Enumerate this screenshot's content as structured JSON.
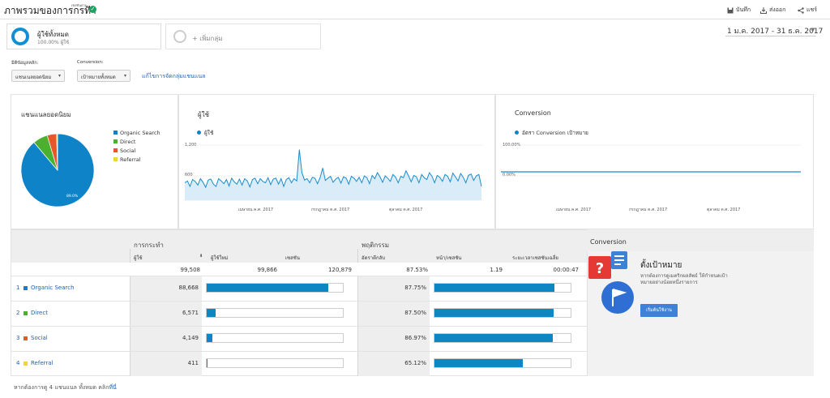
{
  "header": {
    "title": "ภาพรวมของการกรทีา",
    "title_tag": "เซสชันตาม",
    "actions": [
      {
        "label": "บันทึก",
        "icon": "save-icon"
      },
      {
        "label": "ส่งออก",
        "icon": "export-icon"
      },
      {
        "label": "แชร์",
        "icon": "share-icon"
      }
    ]
  },
  "segments": {
    "active_name": "ผู้ใช้ทั้งหมด",
    "active_sub": "100.00% ผู้ใช้",
    "add_label": "+ เพิ่มกลุ่ม"
  },
  "date_range": "1 ม.ค. 2017 - 31 ธ.ค. 2017",
  "controls": {
    "primary_dim_label": "มิติข้อมูลหลัก:",
    "primary_dim_value": "แชนเนลยอดนิยม",
    "conversion_label": "Conversion:",
    "conversion_value": "เป้าหมายทั้งหมด",
    "edit_link": "แก้ไขการจัดกลุ่มแชนแนล"
  },
  "panels": {
    "pie_title": "แชนแนลยอดนิยม",
    "pie_center_label": "89.0%",
    "users_title": "ผู้ใช้",
    "users_legend": "ผู้ใช้",
    "conversion_title": "Conversion",
    "conversion_legend": "อัตรา Conversion เป้าหมาย",
    "users_y_ticks": [
      "1,200",
      "600"
    ],
    "conv_y_ticks": [
      "100.00%",
      "0.00%"
    ],
    "x_ticks": [
      "เมษายน ค.ศ. 2017",
      "กรกฎาคม ค.ศ. 2017",
      "ตุลาคม ค.ศ. 2017"
    ]
  },
  "chart_data": [
    {
      "type": "pie",
      "categories": [
        "Organic Search",
        "Direct",
        "Social",
        "Referral"
      ],
      "values": [
        89.0,
        6.6,
        4.2,
        0.4
      ],
      "colors": [
        "#0e83c7",
        "#4caf2f",
        "#e8572c",
        "#f0d43a"
      ]
    },
    {
      "type": "area",
      "series": [
        {
          "name": "ผู้ใช้"
        }
      ],
      "ylim": [
        0,
        1200
      ],
      "values": [
        380,
        420,
        300,
        450,
        410,
        330,
        470,
        390,
        280,
        440,
        460,
        350,
        300,
        470,
        420,
        360,
        450,
        310,
        480,
        400,
        350,
        460,
        330,
        470,
        420,
        290,
        450,
        480,
        360,
        470,
        410,
        380,
        490,
        340,
        460,
        480,
        350,
        470,
        300,
        450,
        490,
        380,
        470,
        420,
        1100,
        600,
        440,
        470,
        380,
        500,
        480,
        360,
        490,
        700,
        430,
        480,
        520,
        390,
        460,
        500,
        370,
        510,
        480,
        350,
        520,
        480,
        410,
        500,
        380,
        530,
        490,
        360,
        540,
        470,
        600,
        510,
        390,
        530,
        480,
        410,
        560,
        500,
        380,
        520,
        490,
        640,
        530,
        400,
        540,
        510,
        380,
        560,
        490,
        450,
        600,
        520,
        380,
        540,
        500,
        410,
        560,
        520,
        400,
        590,
        510,
        420,
        580,
        500,
        380,
        540,
        570,
        430,
        530,
        560,
        300
      ]
    },
    {
      "type": "line",
      "series": [
        {
          "name": "อัตรา Conversion เป้าหมาย"
        }
      ],
      "ylim": [
        0,
        100
      ],
      "value": 0
    }
  ],
  "table": {
    "group_acquisition": "การกระทำ",
    "group_behavior": "พฤติกรรม",
    "columns": [
      "ผู้ใช้",
      "ผู้ใช้ใหม่",
      "เซสชัน",
      "อัตราตีกลับ",
      "หน้า/เซสชัน",
      "ระยะเวลาเซสชันเฉลี่ย"
    ],
    "totals": [
      "99,508",
      "99,866",
      "120,879",
      "87.53%",
      "1.19",
      "00:00:47"
    ],
    "rows": [
      {
        "idx": "1",
        "name": "Organic Search",
        "color": "#0e83c7",
        "users": "88,668",
        "users_frac": 0.89,
        "bounce": "87.75%",
        "bounce_frac": 0.8775
      },
      {
        "idx": "2",
        "name": "Direct",
        "color": "#4caf2f",
        "users": "6,571",
        "users_frac": 0.066,
        "bounce": "87.50%",
        "bounce_frac": 0.875
      },
      {
        "idx": "3",
        "name": "Social",
        "color": "#e8572c",
        "users": "4,149",
        "users_frac": 0.042,
        "bounce": "86.97%",
        "bounce_frac": 0.8697
      },
      {
        "idx": "4",
        "name": "Referral",
        "color": "#f0d43a",
        "users": "411",
        "users_frac": 0.004,
        "bounce": "65.12%",
        "bounce_frac": 0.6512
      }
    ]
  },
  "goal_card": {
    "header": "Conversion",
    "title": "ตั้งเป้าหมาย",
    "desc": "หากต้องการดูเมตริกผลลัพธ์ ให้กำหนดเป้าหมายอย่างน้อยหนึ่งรายการ",
    "button": "เริ่มต้นใช้งาน"
  },
  "footer": {
    "text": "หากต้องการดู 4 แชนแนล ทั้งหมด คลิก",
    "link": "ที่นี่"
  }
}
